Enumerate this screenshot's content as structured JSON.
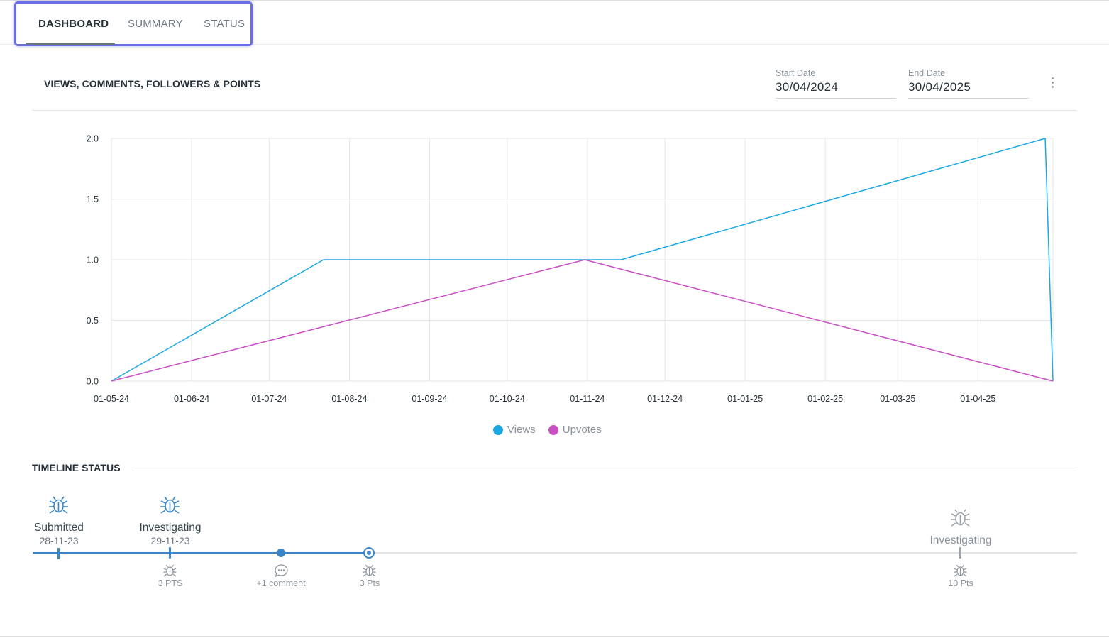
{
  "tabs": [
    {
      "label": "DASHBOARD",
      "active": true
    },
    {
      "label": "SUMMARY",
      "active": false
    },
    {
      "label": "STATUS",
      "active": false
    }
  ],
  "chart_section": {
    "title": "VIEWS, COMMENTS, FOLLOWERS & POINTS",
    "start_date": {
      "label": "Start Date",
      "value": "30/04/2024"
    },
    "end_date": {
      "label": "End Date",
      "value": "30/04/2025"
    },
    "more_icon": "more-vertical-icon"
  },
  "chart_data": {
    "type": "line",
    "x_ticks": [
      "01-05-24",
      "01-06-24",
      "01-07-24",
      "01-08-24",
      "01-09-24",
      "01-10-24",
      "01-11-24",
      "01-12-24",
      "01-01-25",
      "01-02-25",
      "01-03-25",
      "01-04-25"
    ],
    "y_ticks": [
      "0.0",
      "0.5",
      "1.0",
      "1.5",
      "2.0"
    ],
    "ylim": [
      0,
      2
    ],
    "xlim": [
      "2024-05-01",
      "2025-04-30"
    ],
    "grid": true,
    "legend_position": "bottom-center",
    "series": [
      {
        "name": "Views",
        "color": "#1ba8e4",
        "points": [
          [
            "2024-05-01",
            0
          ],
          [
            "2024-07-22",
            1
          ],
          [
            "2024-11-14",
            1
          ],
          [
            "2025-04-27",
            2
          ],
          [
            "2025-04-30",
            0
          ]
        ]
      },
      {
        "name": "Upvotes",
        "color": "#c94fc4",
        "points": [
          [
            "2024-05-01",
            0
          ],
          [
            "2024-10-31",
            1
          ],
          [
            "2025-04-30",
            0
          ]
        ]
      }
    ]
  },
  "legend": [
    {
      "name": "Views",
      "color": "#1ba8e4"
    },
    {
      "name": "Upvotes",
      "color": "#c94fc4"
    }
  ],
  "timeline": {
    "title": "TIMELINE STATUS",
    "events": [
      {
        "label": "Submitted",
        "date": "28-11-23",
        "icon": "bug-icon"
      },
      {
        "label": "Investigating",
        "date": "29-11-23",
        "icon": "bug-icon",
        "sub": "3 PTS"
      },
      {
        "sub": "+1 comment",
        "icon": "comment-icon"
      },
      {
        "sub": "3 Pts",
        "icon": "bug-icon"
      },
      {
        "label": "Investigating",
        "icon": "bug-icon",
        "sub": "10 Pts"
      }
    ]
  },
  "colors": {
    "accent": "#3a86c9",
    "views": "#1ba8e4",
    "upvotes": "#c94fc4",
    "tab_focus": "#6a6ee8"
  }
}
